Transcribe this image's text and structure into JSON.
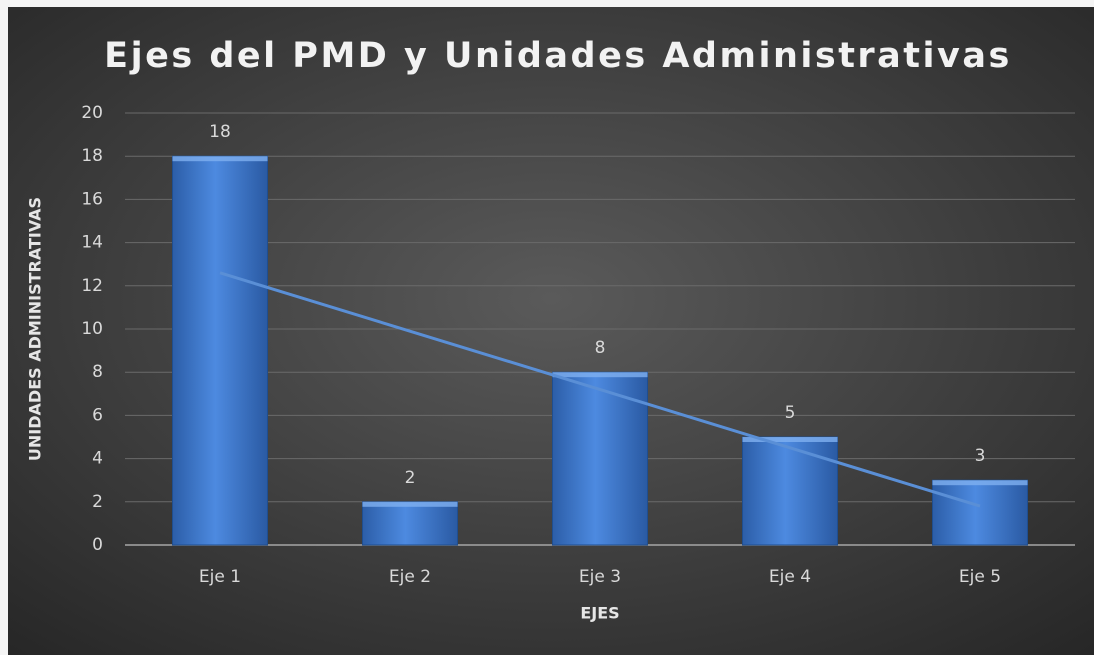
{
  "chart_data": {
    "type": "bar",
    "title": "Ejes del PMD y Unidades Administrativas",
    "x_label": "EJES",
    "y_label": "UNIDADES ADMINISTRATIVAS",
    "categories": [
      "Eje 1",
      "Eje 2",
      "Eje 3",
      "Eje 4",
      "Eje 5"
    ],
    "values": [
      18,
      2,
      8,
      5,
      3
    ],
    "color": "#3f79cf",
    "ylim": [
      0,
      20
    ],
    "yticks": [
      0,
      2,
      4,
      6,
      8,
      10,
      12,
      14,
      16,
      18,
      20
    ],
    "grid": true,
    "data_labels": true,
    "trendline": {
      "type": "linear",
      "color": "#5a8fd6"
    }
  }
}
